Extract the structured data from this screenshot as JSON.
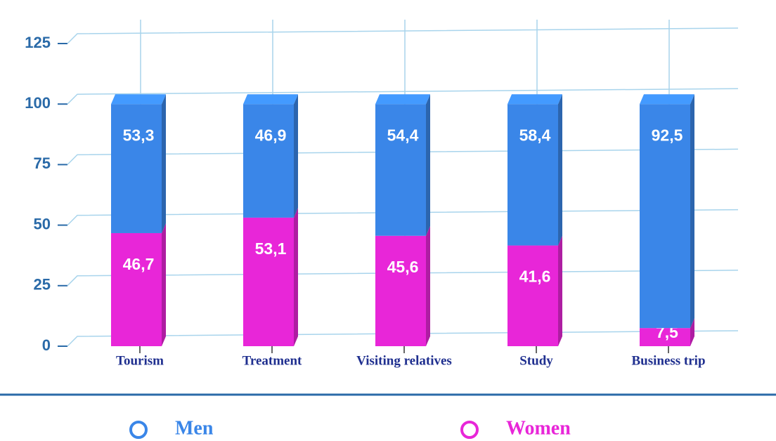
{
  "chart_data": {
    "type": "bar",
    "stacked": true,
    "categories": [
      "Tourism",
      "Treatment",
      "Visiting relatives",
      "Study",
      "Business trip"
    ],
    "series": [
      {
        "name": "Women",
        "color": "#e826d8",
        "values": [
          46.7,
          53.1,
          45.6,
          41.6,
          7.5
        ],
        "value_labels": [
          "46,7",
          "53,1",
          "45,6",
          "41,6",
          "7,5"
        ]
      },
      {
        "name": "Men",
        "color": "#3a86e8",
        "values": [
          53.3,
          46.9,
          54.4,
          58.4,
          92.5
        ],
        "value_labels": [
          "53,3",
          "46,9",
          "54,4",
          "58,4",
          "92,5"
        ]
      }
    ],
    "ylim": [
      0,
      125
    ],
    "yticks": [
      0,
      25,
      50,
      75,
      100,
      125
    ],
    "grid": true,
    "legend": "bottom"
  }
}
